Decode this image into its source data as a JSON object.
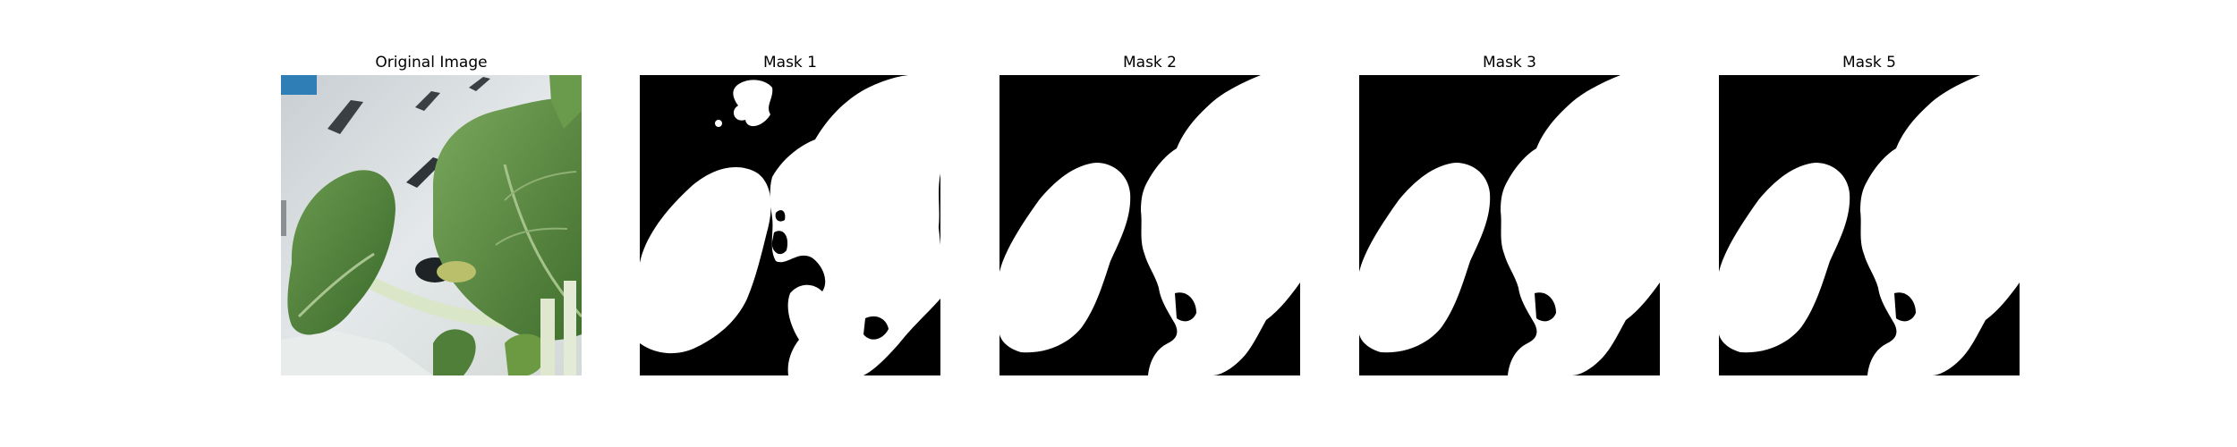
{
  "figure": {
    "panels": [
      {
        "title": "Original Image"
      },
      {
        "title": "Mask 1"
      },
      {
        "title": "Mask 2"
      },
      {
        "title": "Mask 3"
      },
      {
        "title": "Mask 5"
      }
    ]
  },
  "colors": {
    "background": "#ffffff",
    "mask_foreground": "#ffffff",
    "mask_background": "#000000",
    "leaf_dark": "#3d6b2c",
    "leaf_mid": "#5e8c45",
    "stem": "#d8e6c8",
    "bg_light": "#dde2e4"
  }
}
